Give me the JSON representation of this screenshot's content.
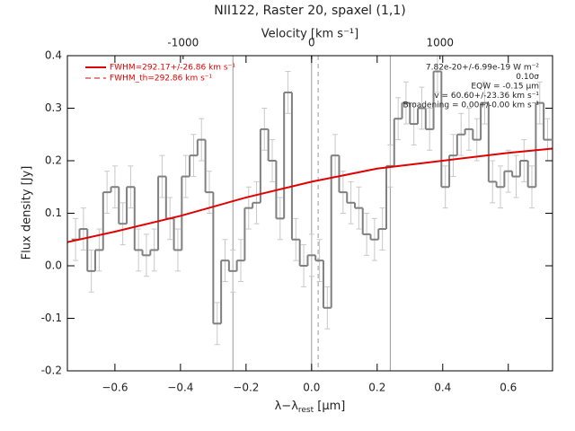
{
  "chart_data": {
    "type": "step",
    "title": "NII122, Raster 20, spaxel (1,1)",
    "x_label": [
      "λ−λ",
      "rest",
      " [μm]"
    ],
    "x2_label": "Velocity [km s⁻¹]",
    "y_label": "Flux density [Jy]",
    "xlim": [
      -0.745,
      0.735
    ],
    "xticks": [
      {
        "value": -0.6,
        "label": "−0.6"
      },
      {
        "value": -0.4,
        "label": "−0.4"
      },
      {
        "value": -0.2,
        "label": "−0.2"
      },
      {
        "value": 0,
        "label": "0.0"
      },
      0.2,
      0.4,
      0.6
    ],
    "x2lim": [
      -1901,
      1876
    ],
    "x2ticks": [
      -1000,
      0,
      1000
    ],
    "ylim": [
      -0.2,
      0.4
    ],
    "yticks": [
      0.4,
      0.3,
      0.2,
      0.1,
      {
        "value": 0,
        "label": "0.0"
      },
      -0.1,
      -0.2
    ],
    "bin_width": 0.024,
    "x": [
      -0.72,
      -0.696,
      -0.672,
      -0.648,
      -0.624,
      -0.6,
      -0.576,
      -0.552,
      -0.528,
      -0.504,
      -0.48,
      -0.456,
      -0.432,
      -0.408,
      -0.384,
      -0.36,
      -0.336,
      -0.312,
      -0.288,
      -0.264,
      -0.24,
      -0.216,
      -0.192,
      -0.168,
      -0.144,
      -0.12,
      -0.096,
      -0.072,
      -0.048,
      -0.024,
      0,
      0.024,
      0.048,
      0.072,
      0.096,
      0.12,
      0.144,
      0.168,
      0.192,
      0.216,
      0.24,
      0.264,
      0.288,
      0.312,
      0.336,
      0.36,
      0.384,
      0.408,
      0.432,
      0.456,
      0.48,
      0.504,
      0.528,
      0.552,
      0.576,
      0.6,
      0.624,
      0.648,
      0.672,
      0.696,
      0.72
    ],
    "values": [
      0.05,
      0.07,
      -0.01,
      0.03,
      0.14,
      0.15,
      0.08,
      0.15,
      0.03,
      0.02,
      0.03,
      0.17,
      0.09,
      0.03,
      0.17,
      0.21,
      0.24,
      0.14,
      -0.11,
      0.01,
      -0.01,
      0.01,
      0.11,
      0.12,
      0.26,
      0.2,
      0.09,
      0.33,
      0.05,
      0,
      0.02,
      0.01,
      -0.08,
      0.21,
      0.14,
      0.12,
      0.11,
      0.06,
      0.05,
      0.07,
      0.19,
      0.28,
      0.31,
      0.27,
      0.3,
      0.26,
      0.37,
      0.15,
      0.21,
      0.25,
      0.26,
      0.24,
      0.31,
      0.16,
      0.15,
      0.18,
      0.17,
      0.2,
      0.15,
      0.31,
      0.24
    ],
    "errors": [
      0.04,
      0.04,
      0.04,
      0.04,
      0.04,
      0.04,
      0.04,
      0.04,
      0.04,
      0.04,
      0.04,
      0.04,
      0.04,
      0.04,
      0.04,
      0.04,
      0.04,
      0.04,
      0.04,
      0.04,
      0.04,
      0.04,
      0.04,
      0.04,
      0.04,
      0.04,
      0.04,
      0.04,
      0.04,
      0.04,
      0.04,
      0.04,
      0.04,
      0.04,
      0.04,
      0.04,
      0.04,
      0.04,
      0.04,
      0.04,
      0.04,
      0.04,
      0.04,
      0.04,
      0.04,
      0.04,
      0.04,
      0.04,
      0.04,
      0.04,
      0.04,
      0.04,
      0.04,
      0.04,
      0.04,
      0.04,
      0.04,
      0.04,
      0.04,
      0.04,
      0.04
    ],
    "color": "#808080",
    "error_color": "#c8c8c8",
    "fit": {
      "name": "FWHM=292.17+/-26.86 km s⁻¹",
      "color": "#e00000",
      "x": [
        -0.745,
        -0.6,
        -0.4,
        -0.2,
        0,
        0.2,
        0.4,
        0.6,
        0.735
      ],
      "values": [
        0.045,
        0.065,
        0.095,
        0.13,
        0.16,
        0.185,
        0.2,
        0.215,
        0.223
      ]
    },
    "fit_th_name": "FWHM_th=292.86 km s⁻¹",
    "vlines": [
      {
        "value": -0.24,
        "style": "solid"
      },
      {
        "value": 0,
        "style": "solid"
      },
      {
        "value": 0.24,
        "style": "solid"
      },
      {
        "value": 0.02,
        "style": "dashed"
      }
    ],
    "annotations": [
      "7.82e-20+/-6.99e-19 W m⁻²",
      "0.10σ",
      "EQW = -0.15 μm",
      "v = 60.60+/-23.36 km s⁻¹",
      "Broadening = 0.00+/-0.00 km s⁻¹"
    ]
  }
}
